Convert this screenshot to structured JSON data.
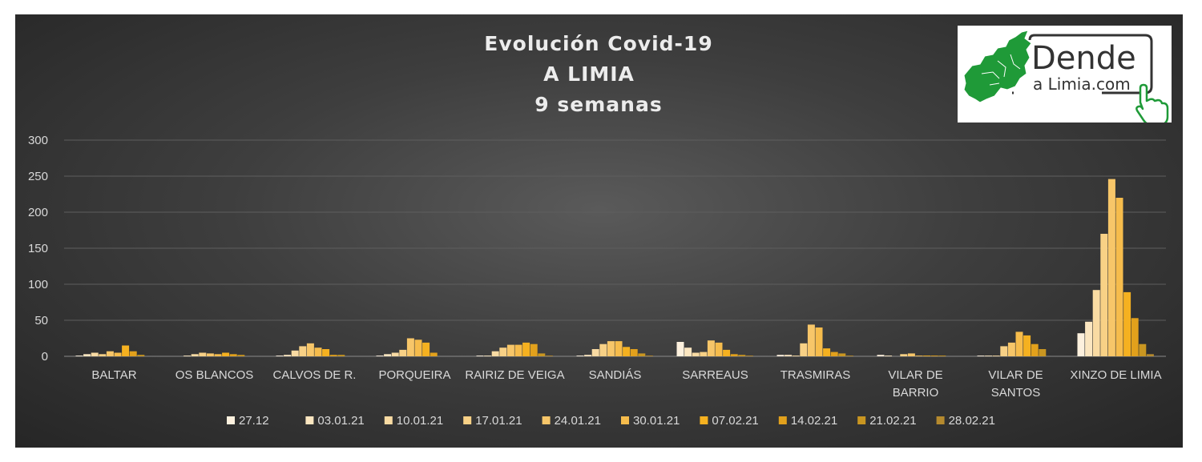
{
  "logo": {
    "line1": "Dende",
    "line2": "a Limia.com",
    "colors": {
      "map": "#1f9a38",
      "frame": "#333333"
    },
    "icons": [
      "map-icon",
      "pointing-hand-icon"
    ]
  },
  "chart_data": {
    "type": "bar",
    "title_lines": [
      "Evolución Covid-19",
      "A LIMIA",
      "9 semanas"
    ],
    "xlabel": "",
    "ylabel": "",
    "ylim": [
      0,
      300
    ],
    "yticks": [
      0,
      50,
      100,
      150,
      200,
      250,
      300
    ],
    "grid": true,
    "legend_position": "bottom",
    "categories": [
      [
        "BALTAR"
      ],
      [
        "OS BLANCOS"
      ],
      [
        "CALVOS DE R."
      ],
      [
        "PORQUEIRA"
      ],
      [
        "RAIRIZ DE VEIGA"
      ],
      [
        "SANDIÁS"
      ],
      [
        "SARREAUS"
      ],
      [
        "TRASMIRAS"
      ],
      [
        "VILAR DE",
        "BARRIO"
      ],
      [
        "VILAR DE",
        "SANTOS"
      ],
      [
        "XINZO DE LIMIA"
      ]
    ],
    "series": [
      {
        "name": "27.12",
        "color": "#fdf1de",
        "values": [
          1,
          0,
          1,
          1,
          1,
          1,
          20,
          2,
          2,
          1,
          32
        ]
      },
      {
        "name": "03.01.21",
        "color": "#fbe6c0",
        "values": [
          3,
          1,
          2,
          3,
          1,
          2,
          12,
          2,
          1,
          1,
          48
        ]
      },
      {
        "name": "10.01.21",
        "color": "#f9dba3",
        "values": [
          5,
          3,
          8,
          5,
          7,
          10,
          5,
          1,
          0,
          1,
          92
        ]
      },
      {
        "name": "17.01.21",
        "color": "#f8d186",
        "values": [
          3,
          5,
          14,
          9,
          12,
          17,
          6,
          18,
          3,
          14,
          170
        ]
      },
      {
        "name": "24.01.21",
        "color": "#f7c669",
        "values": [
          7,
          4,
          18,
          25,
          16,
          21,
          22,
          44,
          4,
          19,
          246
        ]
      },
      {
        "name": "30.01.21",
        "color": "#f6bc4c",
        "values": [
          5,
          3,
          12,
          23,
          16,
          21,
          19,
          40,
          1,
          34,
          220
        ]
      },
      {
        "name": "07.02.21",
        "color": "#f5b120",
        "values": [
          15,
          5,
          10,
          19,
          19,
          13,
          9,
          11,
          1,
          29,
          89
        ]
      },
      {
        "name": "14.02.21",
        "color": "#e2a11c",
        "values": [
          7,
          3,
          2,
          5,
          17,
          10,
          3,
          6,
          1,
          17,
          53
        ]
      },
      {
        "name": "21.02.21",
        "color": "#c99621",
        "values": [
          2,
          2,
          2,
          0,
          4,
          4,
          2,
          4,
          1,
          10,
          17
        ]
      },
      {
        "name": "28.02.21",
        "color": "#b58a2e",
        "values": [
          0,
          0,
          0,
          0,
          1,
          1,
          1,
          1,
          0,
          0,
          3
        ]
      }
    ]
  }
}
